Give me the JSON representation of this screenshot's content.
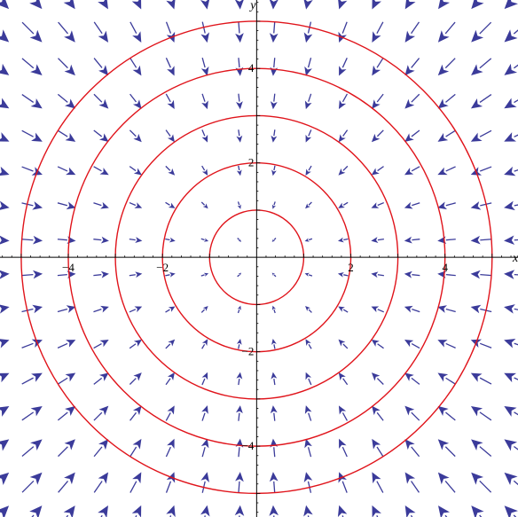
{
  "chart_data": {
    "type": "vector-field-with-contours",
    "field": {
      "fx": "-x",
      "fy": "-y",
      "grid_min": -5.5,
      "grid_max": 5.5,
      "grid_step": 0.7333,
      "color": "#3b3b9a"
    },
    "contours": {
      "shape": "circle",
      "radii": [
        1,
        2,
        3,
        4,
        5
      ],
      "color": "#e0141b"
    },
    "xlabel": "x",
    "ylabel": "y",
    "xlim": [
      -5.45,
      5.55
    ],
    "ylim": [
      -5.5,
      5.45
    ],
    "xticks": [
      {
        "value": -4,
        "label": "−4"
      },
      {
        "value": -2,
        "label": "−2"
      },
      {
        "value": 2,
        "label": "2"
      },
      {
        "value": 4,
        "label": "4"
      }
    ],
    "yticks": [
      {
        "value": 4,
        "label": "4"
      },
      {
        "value": 2,
        "label": "2"
      },
      {
        "value": -2,
        "label": "−2"
      },
      {
        "value": -4,
        "label": "−4"
      }
    ]
  }
}
